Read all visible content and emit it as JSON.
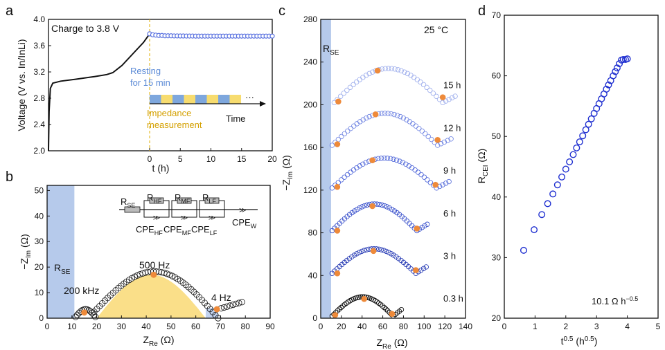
{
  "panels": {
    "a": "a",
    "b": "b",
    "c": "c",
    "d": "d"
  },
  "chart_data": [
    {
      "id": "a",
      "type": "line",
      "xlabel": "t (h)",
      "ylabel": "Voltage (V vs. In/InLi)",
      "xlim": [
        -16.5,
        20
      ],
      "ylim": [
        2.0,
        4.0
      ],
      "xticks": [
        0,
        5,
        10,
        15,
        20
      ],
      "yticks": [
        2.0,
        2.4,
        2.8,
        3.2,
        3.6,
        4.0
      ],
      "charge_curve": [
        [
          -16.5,
          2.0
        ],
        [
          -16.4,
          2.6
        ],
        [
          -16.2,
          2.95
        ],
        [
          -15.8,
          3.03
        ],
        [
          -14.5,
          3.06
        ],
        [
          -12,
          3.09
        ],
        [
          -9,
          3.13
        ],
        [
          -7,
          3.16
        ],
        [
          -6,
          3.19
        ],
        [
          -4.5,
          3.3
        ],
        [
          -2.5,
          3.5
        ],
        [
          -1,
          3.65
        ],
        [
          0,
          3.78
        ]
      ],
      "resting_voltage": [
        3.78,
        3.765,
        3.76,
        3.755,
        3.755,
        3.75,
        3.75,
        3.75,
        3.748,
        3.748,
        3.747,
        3.747,
        3.746,
        3.746,
        3.746,
        3.745,
        3.745,
        3.745,
        3.745,
        3.745,
        3.745,
        3.745,
        3.745,
        3.745,
        3.745,
        3.745,
        3.745,
        3.745,
        3.745,
        3.745,
        3.745,
        3.745,
        3.745,
        3.745,
        3.745,
        3.745,
        3.745,
        3.745,
        3.745,
        3.745,
        3.745
      ],
      "resting_t_step": 0.5,
      "annotations": {
        "charge": "Charge to 3.8 V",
        "resting_1": "Resting",
        "resting_2": "for 15 min",
        "impedance_1": "Impedance",
        "impedance_2": "measurement",
        "time": "Time",
        "dots": "···"
      },
      "colors": {
        "resting": "#7ea7dd",
        "impedance": "#f7dc6f",
        "marker": "#5b73e0",
        "vline": "#e0b000"
      }
    },
    {
      "id": "b",
      "type": "scatter",
      "xlabel": "Z_Re (Ω)",
      "ylabel": "−Z_Im (Ω)",
      "xlim": [
        0,
        90
      ],
      "ylim": [
        0,
        52
      ],
      "xticks": [
        0,
        10,
        20,
        30,
        40,
        50,
        60,
        70,
        80,
        90
      ],
      "yticks": [
        0,
        10,
        20,
        30,
        40,
        50
      ],
      "labels": {
        "rse": "R_SE",
        "f200k": "200 kHz",
        "f500": "500 Hz",
        "f4": "4 Hz"
      },
      "highlight_points": [
        [
          15,
          2.2
        ],
        [
          43,
          17
        ],
        [
          68.5,
          3.5
        ]
      ],
      "regions": {
        "rse_band": [
          0,
          11
        ],
        "cei_fill": [
          20,
          64
        ]
      },
      "circuit_labels": {
        "rse": "R_SE",
        "rhf": "R_HF",
        "rmf": "R_MF",
        "rlf": "R_LF",
        "cpehf": "CPE_HF",
        "cpemf": "CPE_MF",
        "cpelf": "CPE_LF",
        "cpew": "CPE_W"
      }
    },
    {
      "id": "c",
      "type": "scatter",
      "xlabel": "Z_Re (Ω)",
      "ylabel": "−Z_Im (Ω)",
      "xlim": [
        0,
        140
      ],
      "ylim": [
        0,
        280
      ],
      "xticks": [
        0,
        20,
        40,
        60,
        80,
        100,
        120,
        140
      ],
      "yticks": [
        0,
        40,
        80,
        120,
        160,
        200,
        240,
        280
      ],
      "temperature": "25 °C",
      "rse_label": "R_SE",
      "series": [
        {
          "name": "0.3 h",
          "offset": 0,
          "start": 11,
          "end": 70,
          "peak": 18,
          "tail": 78,
          "color": "#000000",
          "markers": [
            [
              14,
              3
            ],
            [
              42,
              18
            ],
            [
              69,
              4
            ]
          ]
        },
        {
          "name": "3 h",
          "offset": 40,
          "start": 11,
          "end": 92,
          "peak": 23,
          "tail": 102,
          "color": "#1a2fb0",
          "markers": [
            [
              16,
              42
            ],
            [
              51,
              63
            ],
            [
              92,
              45
            ]
          ]
        },
        {
          "name": "6 h",
          "offset": 80,
          "start": 11,
          "end": 93,
          "peak": 25,
          "tail": 103,
          "color": "#2b44c8",
          "markers": [
            [
              16,
              82
            ],
            [
              50,
              105
            ],
            [
              93,
              84
            ]
          ]
        },
        {
          "name": "9 h",
          "offset": 120,
          "start": 11,
          "end": 112,
          "peak": 28,
          "tail": 124,
          "color": "#4a62d8",
          "markers": [
            [
              16,
              123
            ],
            [
              50,
              148
            ],
            [
              111,
              125
            ]
          ]
        },
        {
          "name": "12 h",
          "offset": 160,
          "start": 11,
          "end": 113,
          "peak": 30,
          "tail": 126,
          "color": "#6d82e2",
          "markers": [
            [
              16,
              163
            ],
            [
              53,
              191
            ],
            [
              113,
              167
            ]
          ]
        },
        {
          "name": "15 h",
          "offset": 200,
          "start": 13,
          "end": 118,
          "peak": 32,
          "tail": 130,
          "color": "#9aabec",
          "markers": [
            [
              17,
              203
            ],
            [
              55,
              232
            ],
            [
              118,
              207
            ]
          ]
        }
      ]
    },
    {
      "id": "d",
      "type": "scatter",
      "xlabel": "t^0.5 (h^0.5)",
      "ylabel": "R_CEI (Ω)",
      "xlim": [
        0,
        5
      ],
      "ylim": [
        20,
        70
      ],
      "xticks": [
        0,
        1,
        2,
        3,
        4,
        5
      ],
      "yticks": [
        20,
        30,
        40,
        50,
        60,
        70
      ],
      "slope_label": "10.1 Ω h^−0.5",
      "x": [
        0.63,
        0.97,
        1.22,
        1.41,
        1.58,
        1.73,
        1.87,
        2.0,
        2.12,
        2.24,
        2.35,
        2.45,
        2.55,
        2.65,
        2.74,
        2.83,
        2.92,
        3.0,
        3.08,
        3.16,
        3.24,
        3.32,
        3.39,
        3.46,
        3.54,
        3.61,
        3.67,
        3.74,
        3.81,
        3.87,
        3.94,
        4.0
      ],
      "y": [
        31.2,
        34.6,
        37.1,
        38.9,
        40.5,
        42.0,
        43.3,
        44.6,
        45.8,
        47.0,
        48.1,
        49.1,
        50.1,
        51.1,
        52.0,
        52.9,
        53.8,
        54.6,
        55.4,
        56.2,
        57.0,
        57.8,
        58.5,
        59.2,
        60.0,
        60.7,
        61.3,
        62.0,
        62.6,
        62.7,
        62.7,
        62.8
      ],
      "marker_color": "#1f2fd0"
    }
  ]
}
